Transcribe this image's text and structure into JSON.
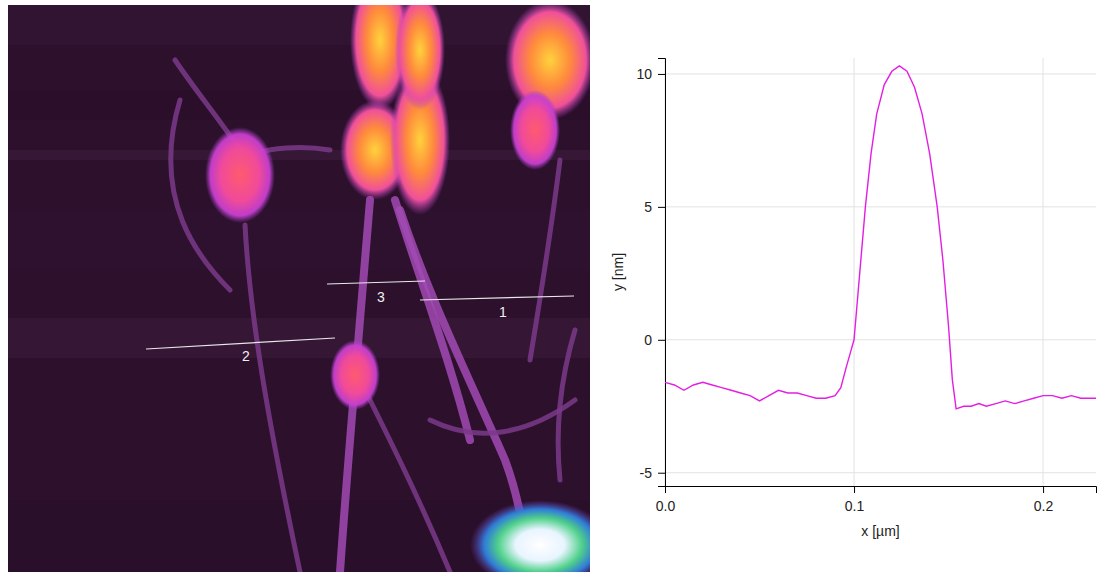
{
  "chart_data": {
    "type": "line",
    "x_label": "x [µm]",
    "y_label": "y [nm]",
    "x": [
      0,
      0.005,
      0.01,
      0.015,
      0.02,
      0.025,
      0.03,
      0.035,
      0.04,
      0.045,
      0.05,
      0.055,
      0.06,
      0.065,
      0.07,
      0.075,
      0.08,
      0.085,
      0.09,
      0.093,
      0.096,
      0.098,
      0.1,
      0.103,
      0.106,
      0.109,
      0.112,
      0.116,
      0.12,
      0.124,
      0.128,
      0.132,
      0.136,
      0.14,
      0.144,
      0.147,
      0.15,
      0.152,
      0.154,
      0.158,
      0.162,
      0.166,
      0.17,
      0.175,
      0.18,
      0.185,
      0.19,
      0.195,
      0.2,
      0.205,
      0.21,
      0.215,
      0.22,
      0.225,
      0.228
    ],
    "values": [
      -1.6,
      -1.7,
      -1.9,
      -1.7,
      -1.6,
      -1.7,
      -1.8,
      -1.9,
      -2.0,
      -2.1,
      -2.3,
      -2.1,
      -1.9,
      -2.0,
      -2.0,
      -2.1,
      -2.2,
      -2.2,
      -2.1,
      -1.8,
      -1.0,
      -0.5,
      0.0,
      2.5,
      5.0,
      7.0,
      8.5,
      9.6,
      10.1,
      10.3,
      10.1,
      9.5,
      8.5,
      7.0,
      5.0,
      3.0,
      0.5,
      -1.5,
      -2.6,
      -2.5,
      -2.5,
      -2.4,
      -2.5,
      -2.4,
      -2.3,
      -2.4,
      -2.3,
      -2.2,
      -2.1,
      -2.1,
      -2.2,
      -2.1,
      -2.2,
      -2.2,
      -2.2
    ],
    "color": "#e31ee3",
    "xlim": [
      0,
      0.228
    ],
    "ylim": [
      -5.5,
      10.6
    ],
    "xticks": [
      {
        "value": 0,
        "label": "0.0"
      },
      {
        "value": 0.1,
        "label": "0.1"
      },
      {
        "value": 0.2,
        "label": "0.2"
      }
    ],
    "yticks": [
      -5,
      0,
      5,
      10
    ],
    "grid": true
  },
  "afm_image": {
    "profile_lines": [
      {
        "label": "1"
      },
      {
        "label": "2"
      },
      {
        "label": "3"
      }
    ]
  }
}
